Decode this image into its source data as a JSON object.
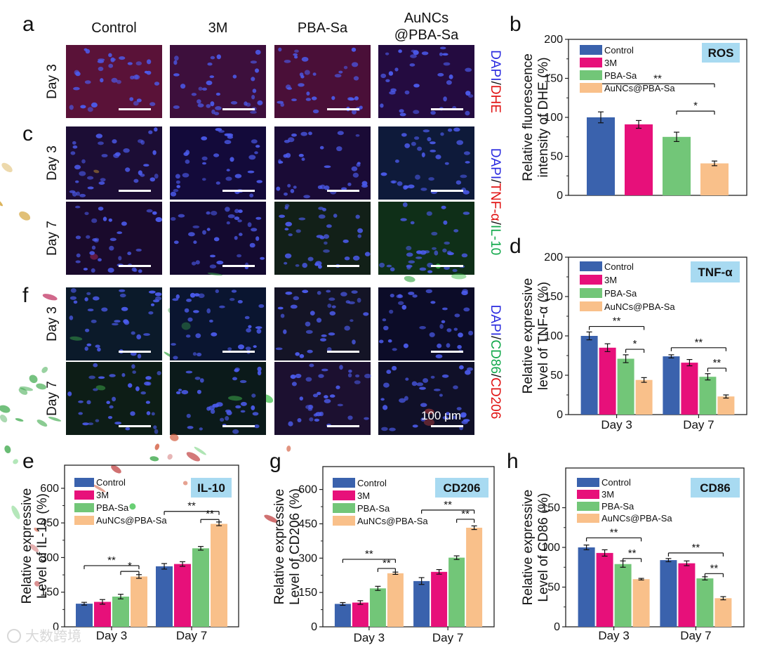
{
  "colors": {
    "Control": "#3a62ad",
    "3M": "#e7107a",
    "PBA-Sa": "#72c678",
    "AuNCs@PBA-Sa": "#f9c08a",
    "title_bg": "#a8daf1"
  },
  "panel_letters": [
    "a",
    "b",
    "c",
    "d",
    "e",
    "f",
    "g",
    "h"
  ],
  "micrographs": {
    "columns": [
      "Control",
      "3M",
      "PBA-Sa",
      "AuNCs\n@PBA-Sa"
    ],
    "rows": [
      {
        "label": "Day 3",
        "stain": "DAPI/DHE"
      },
      {
        "label": "Day 3",
        "stain": "DAPI/TNF-α/IL-10"
      },
      {
        "label": "Day 7",
        "stain": ""
      },
      {
        "label": "Day 3",
        "stain": "DAPI/CD86/CD206"
      },
      {
        "label": "Day 7",
        "stain": ""
      }
    ],
    "stain_segments": [
      [
        {
          "t": "DAPI",
          "c": "#2a2adf"
        },
        {
          "t": "/",
          "c": "#111111"
        },
        {
          "t": "DHE",
          "c": "#e01010"
        }
      ],
      [
        {
          "t": "DAPI",
          "c": "#2a2adf"
        },
        {
          "t": "/",
          "c": "#111111"
        },
        {
          "t": "TNF-α",
          "c": "#e01010"
        },
        {
          "t": "/",
          "c": "#111111"
        },
        {
          "t": "IL-10",
          "c": "#11a84a"
        }
      ],
      [
        {
          "t": "DAPI",
          "c": "#2a2adf"
        },
        {
          "t": "/",
          "c": "#111111"
        },
        {
          "t": "CD86",
          "c": "#11a84a"
        },
        {
          "t": "/",
          "c": "#111111"
        },
        {
          "t": "CD206",
          "c": "#e01010"
        }
      ]
    ],
    "scale_bar_label": "100 μm"
  },
  "watermark": "大数跨境",
  "chart_data": [
    {
      "id": "b",
      "type": "bar",
      "title": "ROS",
      "ylabel": [
        "Relative fluorescence",
        "intensity of DHE (%)"
      ],
      "ylim": [
        0,
        200
      ],
      "yticks": [
        0,
        50,
        100,
        150,
        200
      ],
      "categories": [
        ""
      ],
      "series": [
        {
          "name": "Control",
          "values": [
            100
          ],
          "errors": [
            7
          ]
        },
        {
          "name": "3M",
          "values": [
            91
          ],
          "errors": [
            5
          ]
        },
        {
          "name": "PBA-Sa",
          "values": [
            75
          ],
          "errors": [
            6
          ]
        },
        {
          "name": "AuNCs@PBA-Sa",
          "values": [
            41
          ],
          "errors": [
            3
          ]
        }
      ],
      "significance": [
        {
          "group": 0,
          "from": 0,
          "to": 3,
          "y": 143,
          "label": "**"
        },
        {
          "group": 0,
          "from": 2,
          "to": 3,
          "y": 108,
          "label": "*"
        }
      ],
      "legend_position": "top-left"
    },
    {
      "id": "d",
      "type": "bar",
      "title": "TNF-α",
      "ylabel": [
        "Relative expressive",
        "level of TNF-α (%)"
      ],
      "ylim": [
        0,
        200
      ],
      "yticks": [
        0,
        50,
        100,
        150,
        200
      ],
      "categories": [
        "Day 3",
        "Day 7"
      ],
      "series": [
        {
          "name": "Control",
          "values": [
            100,
            74
          ],
          "errors": [
            5,
            2
          ]
        },
        {
          "name": "3M",
          "values": [
            85,
            66
          ],
          "errors": [
            5,
            4
          ]
        },
        {
          "name": "PBA-Sa",
          "values": [
            71,
            48
          ],
          "errors": [
            5,
            4
          ]
        },
        {
          "name": "AuNCs@PBA-Sa",
          "values": [
            44,
            23
          ],
          "errors": [
            3,
            2
          ]
        }
      ],
      "significance": [
        {
          "group": 0,
          "from": 0,
          "to": 3,
          "y": 112,
          "label": "**"
        },
        {
          "group": 0,
          "from": 2,
          "to": 3,
          "y": 83,
          "label": "*"
        },
        {
          "group": 1,
          "from": 0,
          "to": 3,
          "y": 85,
          "label": "**"
        },
        {
          "group": 1,
          "from": 2,
          "to": 3,
          "y": 59,
          "label": "**"
        }
      ],
      "legend_position": "top-left"
    },
    {
      "id": "e",
      "type": "bar",
      "title": "IL-10",
      "ylabel": [
        "Relative expressive",
        "Level of IL-10 (%)"
      ],
      "ylim": [
        0,
        700
      ],
      "yticks": [
        0,
        150,
        300,
        450,
        600
      ],
      "categories": [
        "Day 3",
        "Day 7"
      ],
      "series": [
        {
          "name": "Control",
          "values": [
            100,
            262
          ],
          "errors": [
            6,
            12
          ]
        },
        {
          "name": "3M",
          "values": [
            108,
            272
          ],
          "errors": [
            10,
            10
          ]
        },
        {
          "name": "PBA-Sa",
          "values": [
            131,
            340
          ],
          "errors": [
            10,
            8
          ]
        },
        {
          "name": "AuNCs@PBA-Sa",
          "values": [
            218,
            446
          ],
          "errors": [
            8,
            8
          ]
        }
      ],
      "significance": [
        {
          "group": 0,
          "from": 0,
          "to": 3,
          "y": 265,
          "label": "**"
        },
        {
          "group": 0,
          "from": 2,
          "to": 3,
          "y": 240,
          "label": "*"
        },
        {
          "group": 1,
          "from": 0,
          "to": 3,
          "y": 500,
          "label": "**"
        },
        {
          "group": 1,
          "from": 2,
          "to": 3,
          "y": 465,
          "label": "**"
        }
      ],
      "legend_position": "top-left"
    },
    {
      "id": "g",
      "type": "bar",
      "title": "CD206",
      "ylabel": [
        "Relative expressive",
        "Level of CD206 (%)"
      ],
      "ylim": [
        0,
        700
      ],
      "yticks": [
        0,
        150,
        300,
        450,
        600
      ],
      "categories": [
        "Day 3",
        "Day 7"
      ],
      "series": [
        {
          "name": "Control",
          "values": [
            100,
            200
          ],
          "errors": [
            6,
            15
          ]
        },
        {
          "name": "3M",
          "values": [
            106,
            240
          ],
          "errors": [
            8,
            10
          ]
        },
        {
          "name": "PBA-Sa",
          "values": [
            168,
            302
          ],
          "errors": [
            9,
            8
          ]
        },
        {
          "name": "AuNCs@PBA-Sa",
          "values": [
            234,
            433
          ],
          "errors": [
            5,
            8
          ]
        }
      ],
      "significance": [
        {
          "group": 0,
          "from": 0,
          "to": 3,
          "y": 295,
          "label": "**"
        },
        {
          "group": 0,
          "from": 2,
          "to": 3,
          "y": 255,
          "label": "**"
        },
        {
          "group": 1,
          "from": 0,
          "to": 3,
          "y": 510,
          "label": "**"
        },
        {
          "group": 1,
          "from": 2,
          "to": 3,
          "y": 470,
          "label": "**"
        }
      ],
      "legend_position": "top-left"
    },
    {
      "id": "h",
      "type": "bar",
      "title": "CD86",
      "ylabel": [
        "Relative expressive",
        "Level of CD86 (%)"
      ],
      "ylim": [
        0,
        200
      ],
      "yticks": [
        0,
        50,
        100,
        150
      ],
      "categories": [
        "Day 3",
        "Day 7"
      ],
      "series": [
        {
          "name": "Control",
          "values": [
            100,
            84
          ],
          "errors": [
            3,
            2
          ]
        },
        {
          "name": "3M",
          "values": [
            93,
            80
          ],
          "errors": [
            4,
            3
          ]
        },
        {
          "name": "PBA-Sa",
          "values": [
            79,
            61
          ],
          "errors": [
            4,
            2
          ]
        },
        {
          "name": "AuNCs@PBA-Sa",
          "values": [
            60,
            36
          ],
          "errors": [
            1,
            2
          ]
        }
      ],
      "significance": [
        {
          "group": 0,
          "from": 0,
          "to": 3,
          "y": 112,
          "label": "**"
        },
        {
          "group": 0,
          "from": 2,
          "to": 3,
          "y": 86,
          "label": "**"
        },
        {
          "group": 1,
          "from": 0,
          "to": 3,
          "y": 93,
          "label": "**"
        },
        {
          "group": 1,
          "from": 2,
          "to": 3,
          "y": 67,
          "label": "**"
        }
      ],
      "legend_position": "top-left"
    }
  ]
}
